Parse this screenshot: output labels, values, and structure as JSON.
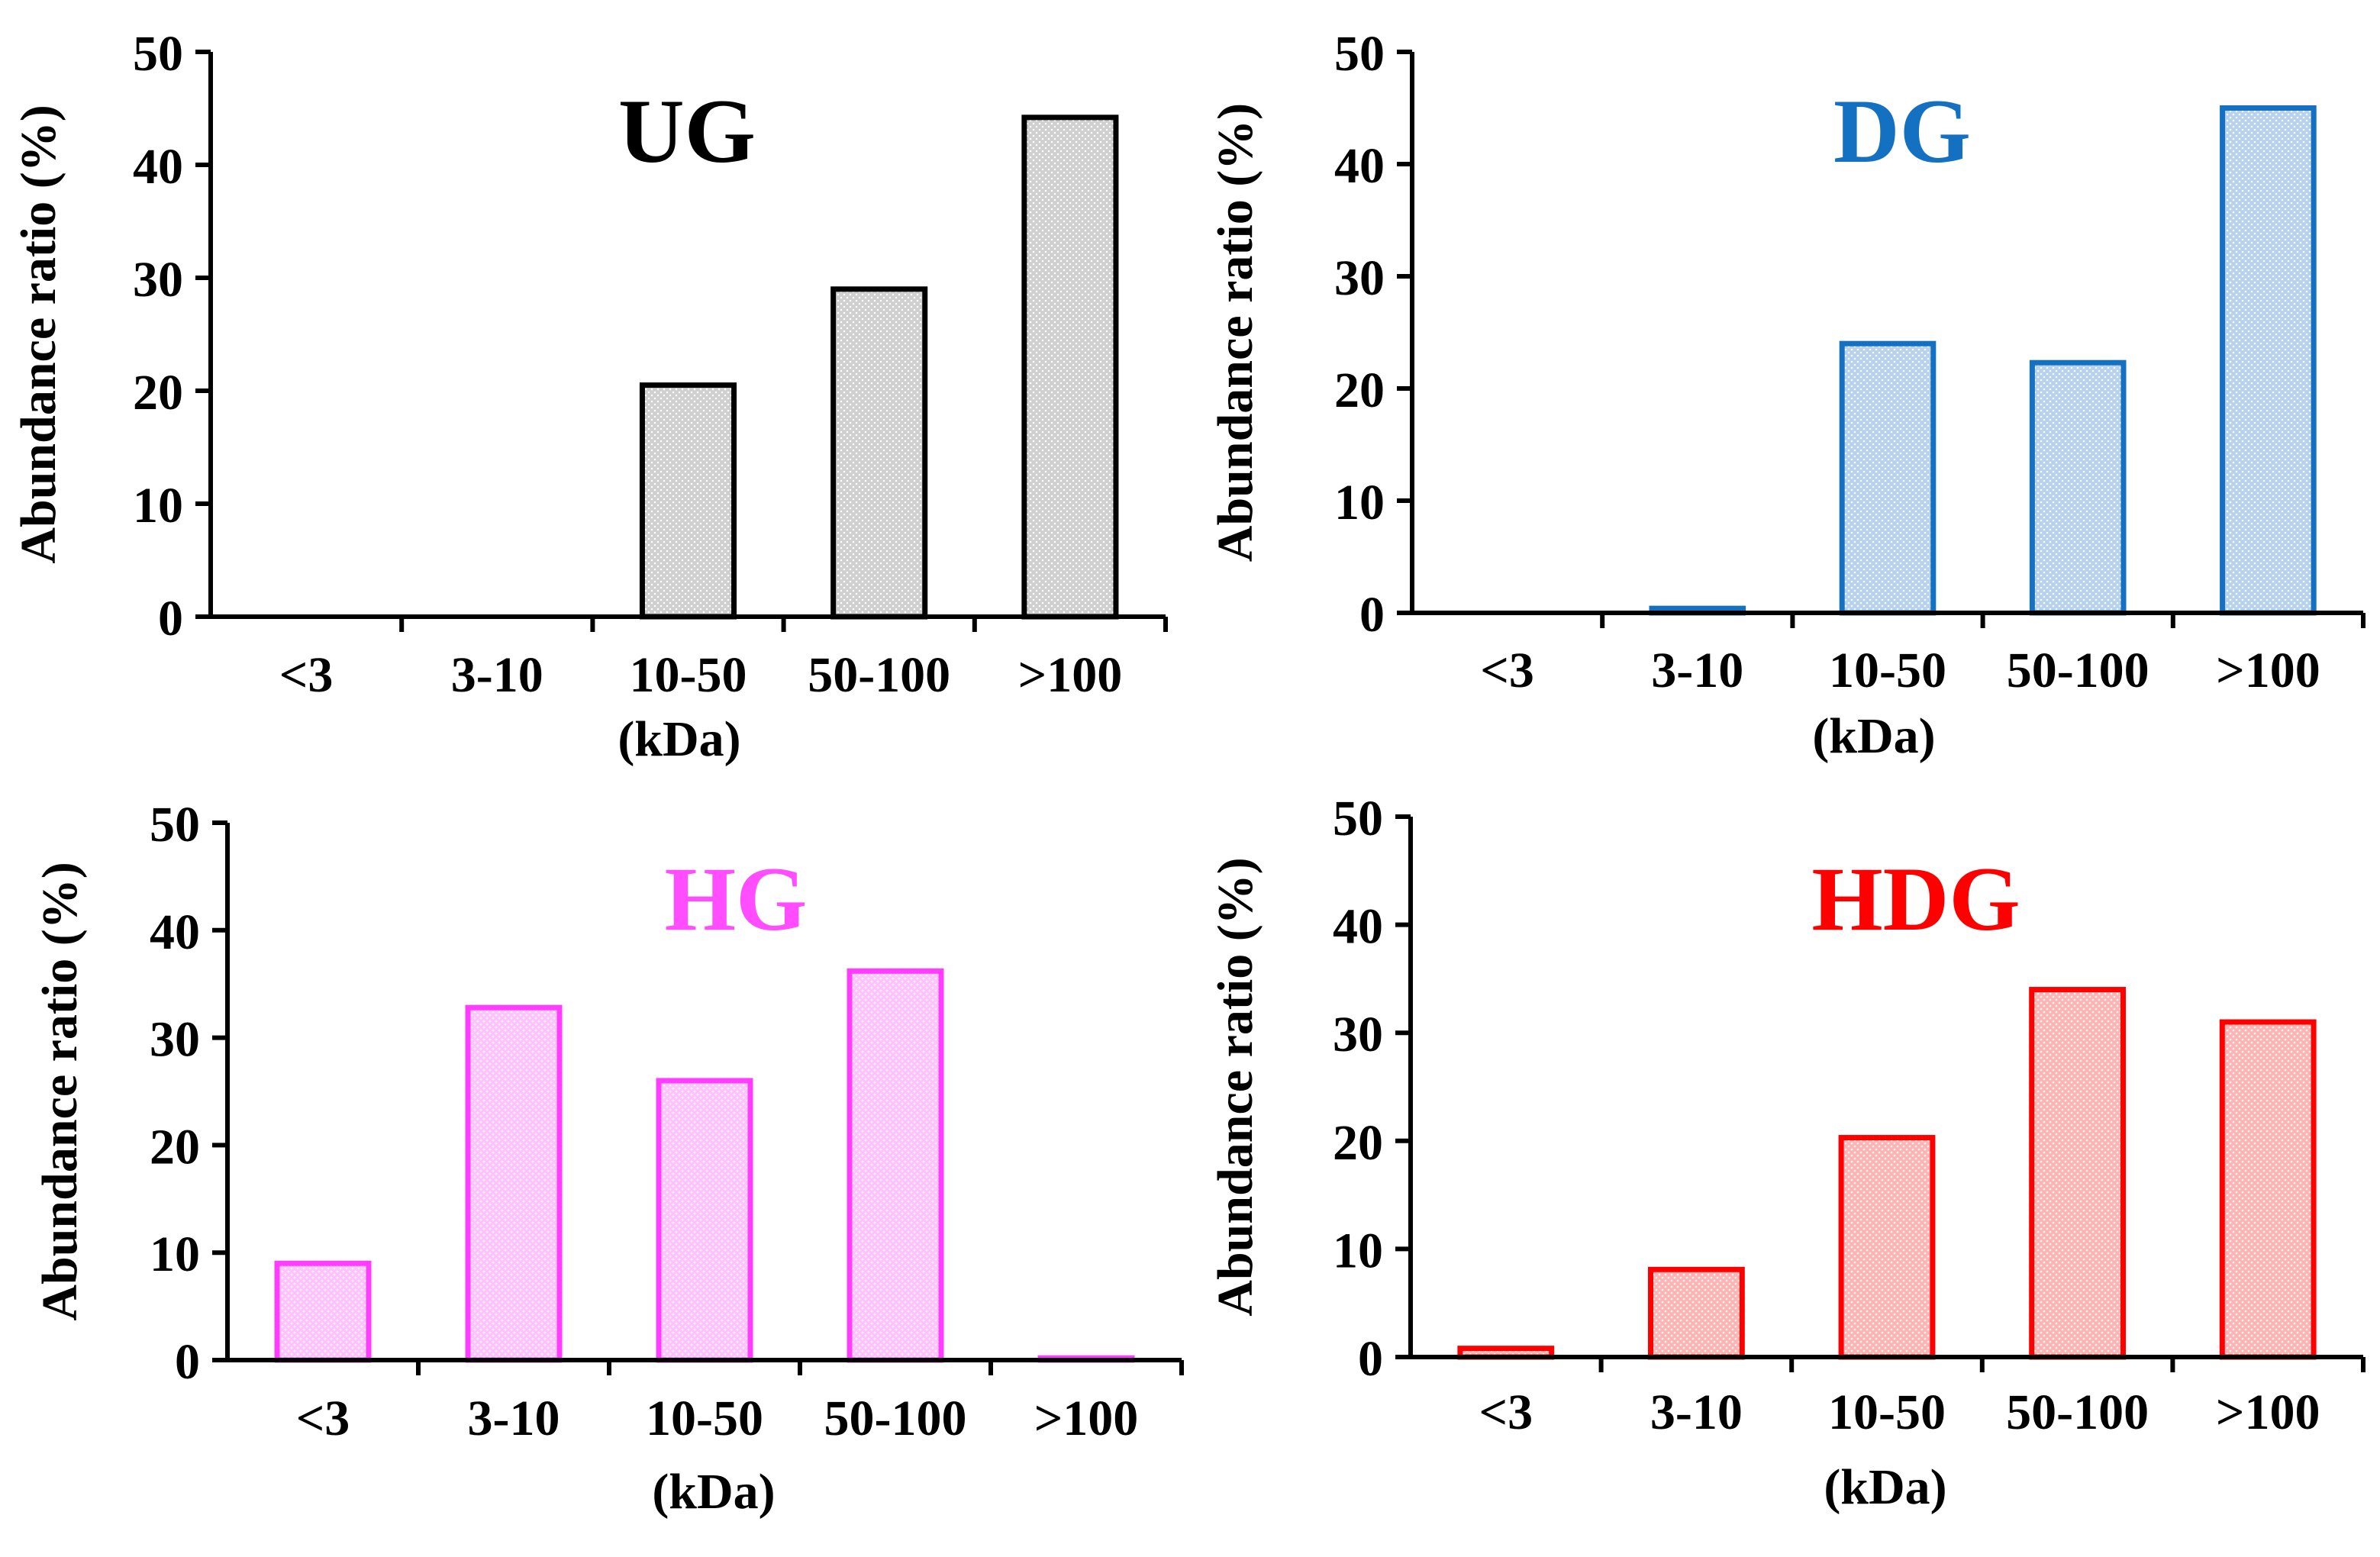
{
  "chart_data": [
    {
      "type": "bar",
      "title": "UG",
      "title_color": "#000000",
      "bar_color": "#000000",
      "fill_color": "#cfcfcf",
      "categories": [
        "<3",
        "3-10",
        "10-50",
        "50-100",
        ">100"
      ],
      "values": [
        0,
        0,
        20.5,
        29,
        44.2
      ],
      "xlabel": "(kDa)",
      "ylabel": "Abundance ratio (%)",
      "ylim": [
        0,
        50
      ],
      "yticks": [
        "0",
        "10",
        "20",
        "30",
        "40",
        "50"
      ]
    },
    {
      "type": "bar",
      "title": "DG",
      "title_color": "#1470c0",
      "bar_color": "#1470c0",
      "fill_color": "#b7d2ee",
      "categories": [
        "<3",
        "3-10",
        "10-50",
        "50-100",
        ">100"
      ],
      "values": [
        0,
        0.4,
        24,
        22.3,
        45
      ],
      "xlabel": "(kDa)",
      "ylabel": "Abundance ratio (%)",
      "ylim": [
        0,
        50
      ],
      "yticks": [
        "0",
        "10",
        "20",
        "30",
        "40",
        "50"
      ]
    },
    {
      "type": "bar",
      "title": "HG",
      "title_color": "#ff4dff",
      "bar_color": "#ff3cff",
      "fill_color": "#ffc2ff",
      "categories": [
        "<3",
        "3-10",
        "10-50",
        "50-100",
        ">100"
      ],
      "values": [
        9,
        32.8,
        26,
        36.2,
        0.2
      ],
      "xlabel": "(kDa)",
      "ylabel": "Abundance ratio (%)",
      "ylim": [
        0,
        50
      ],
      "yticks": [
        "0",
        "10",
        "20",
        "30",
        "40",
        "50"
      ]
    },
    {
      "type": "bar",
      "title": "HDG",
      "title_color": "#ff0000",
      "bar_color": "#ff0000",
      "fill_color": "#ffb3b3",
      "categories": [
        "<3",
        "3-10",
        "10-50",
        "50-100",
        ">100"
      ],
      "values": [
        0.8,
        8.1,
        20.3,
        34,
        31
      ],
      "xlabel": "(kDa)",
      "ylabel": "Abundance ratio (%)",
      "ylim": [
        0,
        50
      ],
      "yticks": [
        "0",
        "10",
        "20",
        "30",
        "40",
        "50"
      ]
    }
  ]
}
